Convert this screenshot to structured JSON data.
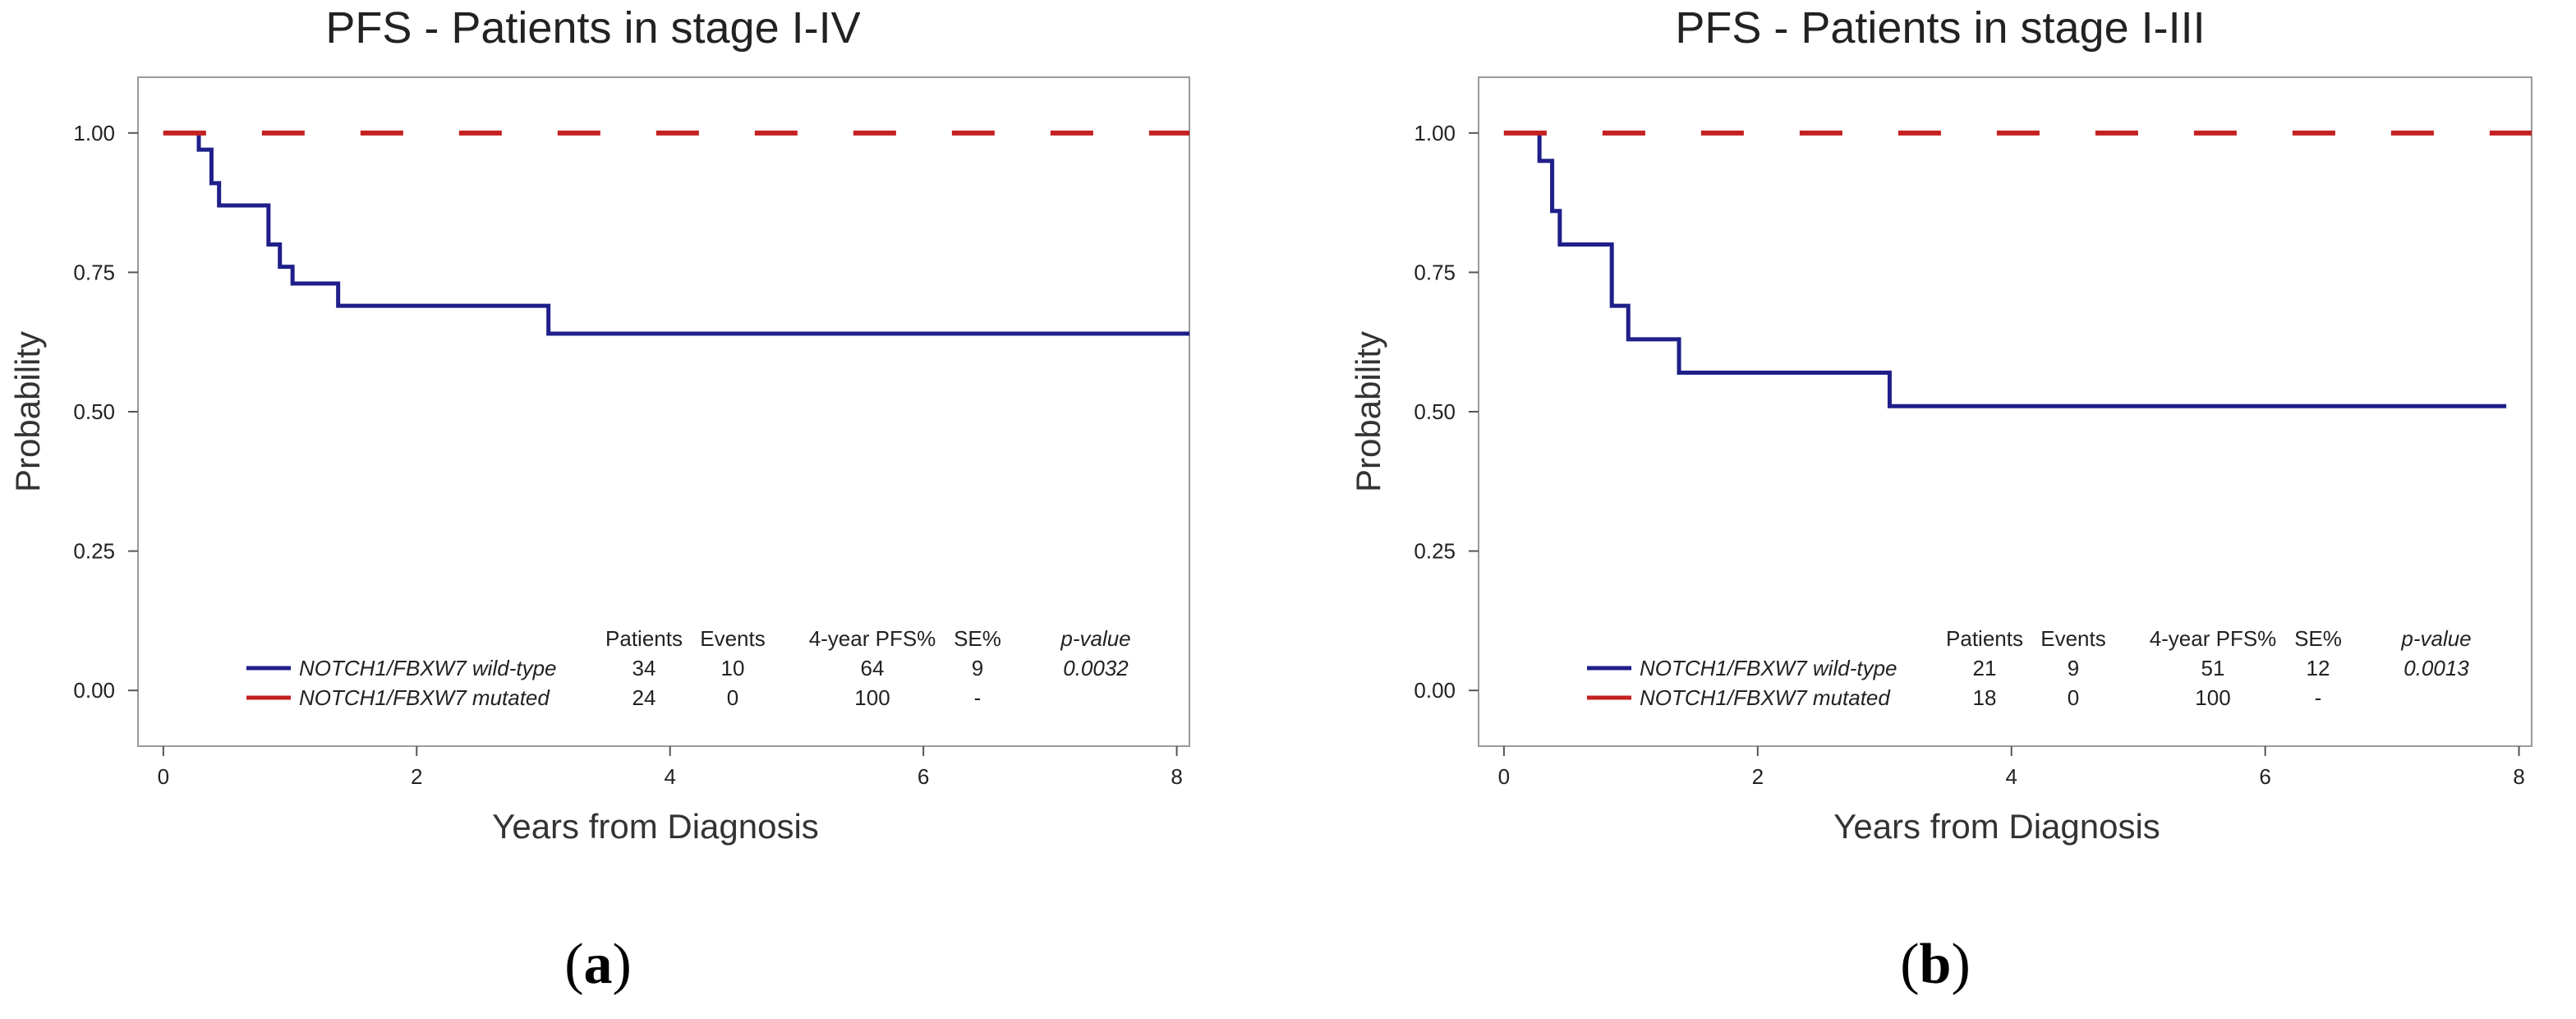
{
  "panel_labels": [
    {
      "open": "(",
      "letter": "a",
      "close": ")"
    },
    {
      "open": "(",
      "letter": "b",
      "close": ")"
    }
  ],
  "chart_data": [
    {
      "type": "line",
      "title": "PFS - Patients in stage I-IV",
      "xlabel": "Years from Diagnosis",
      "ylabel": "Probability",
      "xlim": [
        -0.2,
        8.1
      ],
      "ylim": [
        -0.1,
        1.1
      ],
      "xticks": [
        0,
        2,
        4,
        6,
        8
      ],
      "yticks": [
        0.0,
        0.25,
        0.5,
        0.75,
        1.0
      ],
      "ytick_labels": [
        "0.00",
        "0.25",
        "0.50",
        "0.75",
        "1.00"
      ],
      "series": [
        {
          "name": "NOTCH1/FBXW7 wild-type",
          "color": "#1f1f8a",
          "style": "step",
          "x": [
            0,
            0.28,
            0.38,
            0.44,
            0.83,
            0.92,
            1.02,
            1.38,
            3.04,
            8.1
          ],
          "y": [
            1.0,
            0.97,
            0.91,
            0.87,
            0.8,
            0.76,
            0.73,
            0.69,
            0.64,
            0.64
          ]
        },
        {
          "name": "NOTCH1/FBXW7 mutated",
          "color": "#c42121",
          "style": "dashed",
          "x": [
            0,
            8.1
          ],
          "y": [
            1.0,
            1.0
          ]
        }
      ],
      "table": {
        "headers": [
          "Patients",
          "Events",
          "4-year PFS%",
          "SE%",
          "p-value"
        ],
        "rows": [
          {
            "label": "NOTCH1/FBXW7 wild-type",
            "values": [
              "34",
              "10",
              "64",
              "9",
              "0.0032"
            ]
          },
          {
            "label": "NOTCH1/FBXW7 mutated",
            "values": [
              "24",
              "0",
              "100",
              "-",
              ""
            ]
          }
        ]
      }
    },
    {
      "type": "line",
      "title": "PFS - Patients in stage I-III",
      "xlabel": "Years from Diagnosis",
      "ylabel": "Probability",
      "xlim": [
        -0.2,
        8.1
      ],
      "ylim": [
        -0.1,
        1.1
      ],
      "xticks": [
        0,
        2,
        4,
        6,
        8
      ],
      "yticks": [
        0.0,
        0.25,
        0.5,
        0.75,
        1.0
      ],
      "ytick_labels": [
        "0.00",
        "0.25",
        "0.50",
        "0.75",
        "1.00"
      ],
      "series": [
        {
          "name": "NOTCH1/FBXW7 wild-type",
          "color": "#1f1f8a",
          "style": "step",
          "x": [
            0,
            0.28,
            0.38,
            0.44,
            0.85,
            0.98,
            1.38,
            3.04,
            7.9
          ],
          "y": [
            1.0,
            0.95,
            0.86,
            0.8,
            0.69,
            0.63,
            0.57,
            0.51,
            0.51
          ]
        },
        {
          "name": "NOTCH1/FBXW7 mutated",
          "color": "#c42121",
          "style": "dashed",
          "x": [
            0,
            8.1
          ],
          "y": [
            1.0,
            1.0
          ]
        }
      ],
      "table": {
        "headers": [
          "Patients",
          "Events",
          "4-year PFS%",
          "SE%",
          "p-value"
        ],
        "rows": [
          {
            "label": "NOTCH1/FBXW7 wild-type",
            "values": [
              "21",
              "9",
              "51",
              "12",
              "0.0013"
            ]
          },
          {
            "label": "NOTCH1/FBXW7 mutated",
            "values": [
              "18",
              "0",
              "100",
              "-",
              ""
            ]
          }
        ]
      }
    }
  ]
}
